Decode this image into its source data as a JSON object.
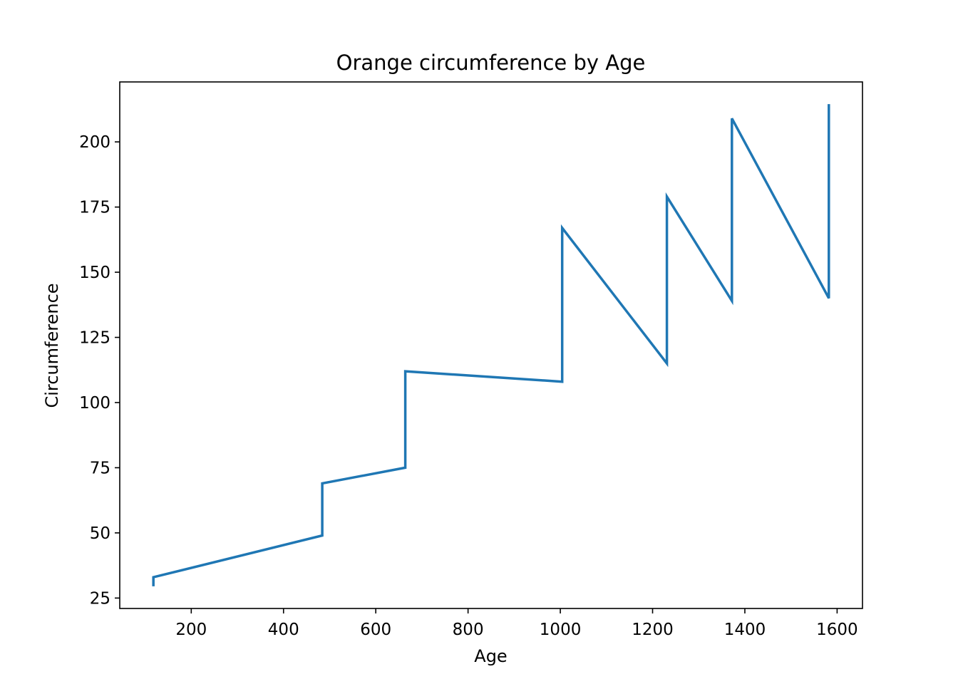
{
  "chart_data": {
    "type": "line",
    "title": "Orange circumference by Age",
    "xlabel": "Age",
    "ylabel": "Circumference",
    "xlim": [
      45,
      1655
    ],
    "ylim": [
      21,
      223
    ],
    "grid": false,
    "xticks": [
      200,
      400,
      600,
      800,
      1000,
      1200,
      1400,
      1600
    ],
    "yticks": [
      25,
      50,
      75,
      100,
      125,
      150,
      175,
      200
    ],
    "series": [
      {
        "color": "#1f77b4",
        "x": [
          118,
          118,
          484,
          484,
          664,
          664,
          1004,
          1004,
          1231,
          1231,
          1372,
          1372,
          1582,
          1582
        ],
        "y": [
          30,
          33,
          49,
          69,
          75,
          112,
          108,
          167,
          115,
          179,
          139,
          209,
          140,
          214
        ]
      }
    ]
  }
}
